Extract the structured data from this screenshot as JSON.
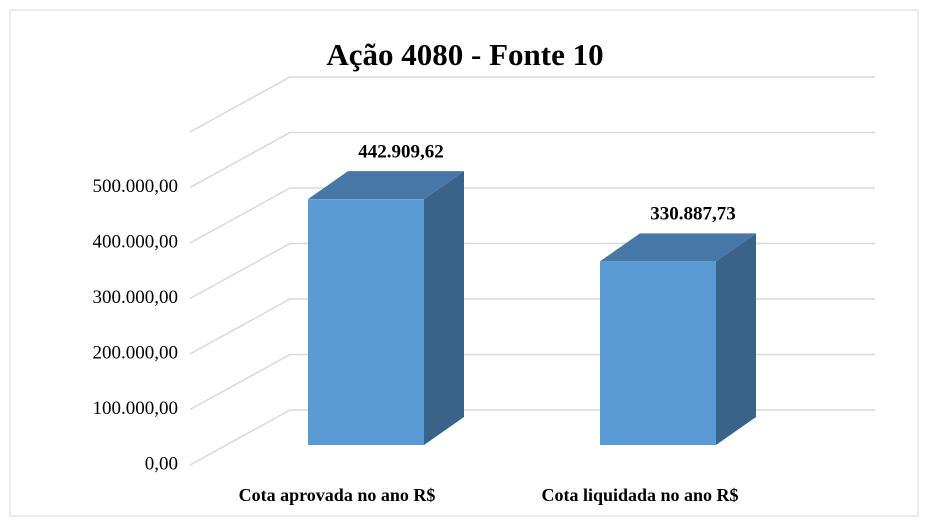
{
  "chart_data": {
    "type": "bar3d",
    "title": "Ação 4080 - Fonte 10",
    "categories": [
      "Cota aprovada no ano R$",
      "Cota liquidada no ano R$"
    ],
    "values": [
      442909.62,
      330887.73
    ],
    "value_labels": [
      "442.909,62",
      "330.887,73"
    ],
    "color": "#5b9bd5",
    "ylim": [
      0,
      600000
    ],
    "yticks": [
      {
        "value": 0,
        "label": "0,00"
      },
      {
        "value": 100000,
        "label": "100.000,00"
      },
      {
        "value": 200000,
        "label": "200.000,00"
      },
      {
        "value": 300000,
        "label": "300.000,00"
      },
      {
        "value": 400000,
        "label": "400.000,00"
      },
      {
        "value": 500000,
        "label": "500.000,00"
      }
    ],
    "grid": true
  }
}
